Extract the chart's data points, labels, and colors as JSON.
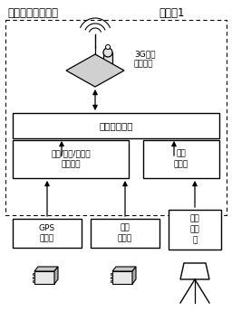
{
  "title_left": "车载智能监控装置",
  "title_right": "渣土车1",
  "module_3g_label": "3G无线\n传输模块",
  "box_fusion_label": "传输数据融合",
  "box_pos_label": "位置/速度/密封性\n信息获取",
  "box_video_label": "视频\n服务器",
  "box_gps_label": "GPS\n传感器",
  "box_seal_label": "密封\n传感器",
  "box_camera_label": "车尾\n摄象\n机",
  "text_color": "#000000",
  "bg_color": "#ffffff",
  "title_fontsize": 8.5,
  "label_fontsize": 7.5,
  "small_fontsize": 6.5
}
